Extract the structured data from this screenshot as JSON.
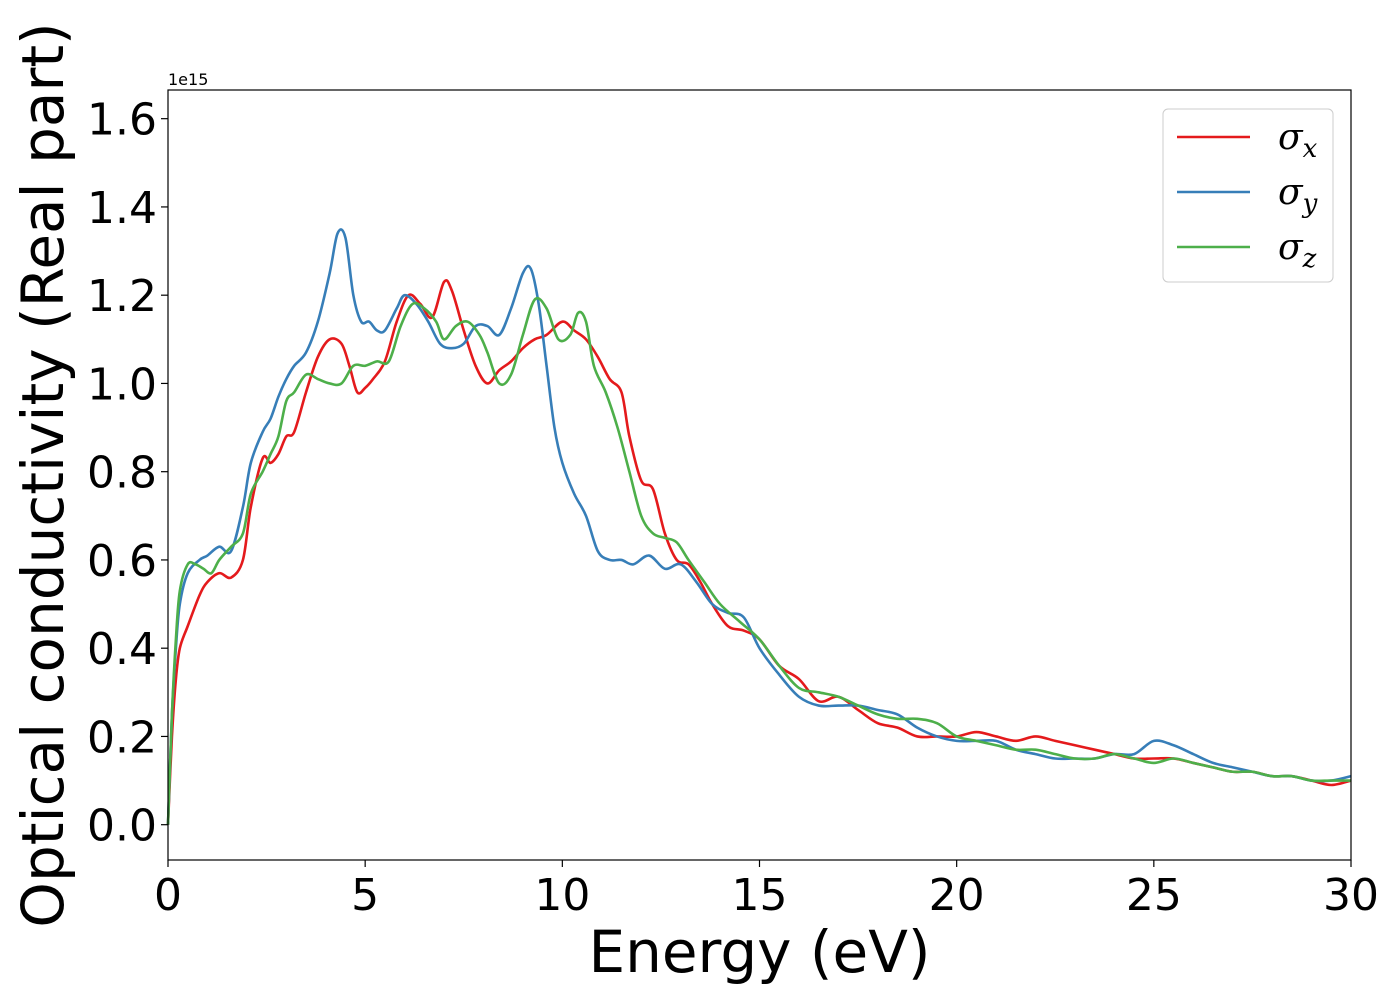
{
  "chart_data": {
    "type": "line",
    "xlabel": "Energy (eV)",
    "ylabel": "Optical conductivity (Real part)",
    "y_offset_label": "1e15",
    "xlim": [
      0,
      30
    ],
    "ylim": [
      -0.08,
      1.665
    ],
    "xticks": [
      0,
      5,
      10,
      15,
      20,
      25,
      30
    ],
    "yticks": [
      0.0,
      0.2,
      0.4,
      0.6,
      0.8,
      1.0,
      1.2,
      1.4,
      1.6
    ],
    "xtick_labels": [
      "0",
      "5",
      "10",
      "15",
      "20",
      "25",
      "30"
    ],
    "ytick_labels": [
      "0.0",
      "0.2",
      "0.4",
      "0.6",
      "0.8",
      "1.0",
      "1.2",
      "1.4",
      "1.6"
    ],
    "grid": false,
    "legend_position": "top-right",
    "series": [
      {
        "name": "σx",
        "symbol": "σ",
        "subscript": "x",
        "color": "#e41a1c",
        "x": [
          0,
          0.1,
          0.2,
          0.3,
          0.5,
          0.8,
          1.0,
          1.3,
          1.6,
          1.9,
          2.1,
          2.4,
          2.6,
          2.8,
          3.0,
          3.2,
          3.5,
          3.8,
          4.1,
          4.4,
          4.6,
          4.8,
          5.0,
          5.2,
          5.5,
          5.8,
          6.1,
          6.4,
          6.7,
          7.0,
          7.2,
          7.5,
          7.8,
          8.1,
          8.4,
          8.7,
          9.0,
          9.3,
          9.6,
          10.0,
          10.3,
          10.6,
          10.9,
          11.2,
          11.5,
          11.7,
          12.0,
          12.3,
          12.6,
          12.9,
          13.2,
          13.5,
          13.8,
          14.2,
          14.6,
          15.0,
          15.5,
          16.0,
          16.5,
          17.0,
          17.5,
          18.0,
          18.5,
          19.0,
          19.5,
          20.0,
          20.5,
          21.0,
          21.5,
          22.0,
          22.5,
          23.0,
          23.5,
          24.0,
          24.5,
          25.0,
          25.5,
          26.0,
          26.5,
          27.0,
          27.5,
          28.0,
          28.5,
          29.0,
          29.5,
          30.0
        ],
        "values": [
          0.0,
          0.2,
          0.33,
          0.4,
          0.45,
          0.52,
          0.55,
          0.57,
          0.56,
          0.6,
          0.72,
          0.83,
          0.82,
          0.84,
          0.88,
          0.89,
          0.98,
          1.06,
          1.1,
          1.09,
          1.04,
          0.98,
          0.99,
          1.01,
          1.05,
          1.14,
          1.2,
          1.18,
          1.15,
          1.23,
          1.21,
          1.12,
          1.04,
          1.0,
          1.03,
          1.05,
          1.08,
          1.1,
          1.11,
          1.14,
          1.12,
          1.1,
          1.06,
          1.01,
          0.98,
          0.88,
          0.78,
          0.76,
          0.66,
          0.6,
          0.59,
          0.55,
          0.5,
          0.45,
          0.44,
          0.42,
          0.36,
          0.33,
          0.28,
          0.29,
          0.26,
          0.23,
          0.22,
          0.2,
          0.2,
          0.2,
          0.21,
          0.2,
          0.19,
          0.2,
          0.19,
          0.18,
          0.17,
          0.16,
          0.15,
          0.15,
          0.15,
          0.14,
          0.13,
          0.12,
          0.12,
          0.11,
          0.11,
          0.1,
          0.09,
          0.1
        ]
      },
      {
        "name": "σy",
        "symbol": "σ",
        "subscript": "y",
        "color": "#377eb8",
        "x": [
          0,
          0.1,
          0.2,
          0.3,
          0.5,
          0.8,
          1.0,
          1.3,
          1.6,
          1.9,
          2.1,
          2.4,
          2.6,
          2.8,
          3.0,
          3.2,
          3.5,
          3.8,
          4.1,
          4.3,
          4.5,
          4.7,
          4.9,
          5.1,
          5.3,
          5.5,
          5.8,
          6.0,
          6.3,
          6.6,
          6.9,
          7.2,
          7.5,
          7.8,
          8.1,
          8.4,
          8.7,
          9.0,
          9.2,
          9.4,
          9.6,
          9.8,
          10.0,
          10.3,
          10.6,
          10.9,
          11.2,
          11.5,
          11.8,
          12.2,
          12.6,
          13.0,
          13.4,
          13.8,
          14.2,
          14.6,
          15.0,
          15.5,
          16.0,
          16.5,
          17.0,
          17.5,
          18.0,
          18.5,
          19.0,
          19.5,
          20.0,
          20.5,
          21.0,
          21.5,
          22.0,
          22.5,
          23.0,
          23.5,
          24.0,
          24.5,
          25.0,
          25.5,
          26.0,
          26.5,
          27.0,
          27.5,
          28.0,
          28.5,
          29.0,
          29.5,
          30.0
        ],
        "values": [
          0.0,
          0.25,
          0.4,
          0.5,
          0.57,
          0.6,
          0.61,
          0.63,
          0.62,
          0.72,
          0.82,
          0.89,
          0.92,
          0.97,
          1.01,
          1.04,
          1.07,
          1.14,
          1.25,
          1.34,
          1.33,
          1.2,
          1.14,
          1.14,
          1.12,
          1.12,
          1.17,
          1.2,
          1.18,
          1.14,
          1.09,
          1.08,
          1.09,
          1.13,
          1.13,
          1.11,
          1.17,
          1.25,
          1.26,
          1.18,
          1.04,
          0.9,
          0.82,
          0.75,
          0.7,
          0.62,
          0.6,
          0.6,
          0.59,
          0.61,
          0.58,
          0.59,
          0.55,
          0.5,
          0.48,
          0.47,
          0.4,
          0.34,
          0.29,
          0.27,
          0.27,
          0.27,
          0.26,
          0.25,
          0.22,
          0.2,
          0.19,
          0.19,
          0.19,
          0.17,
          0.16,
          0.15,
          0.15,
          0.15,
          0.16,
          0.16,
          0.19,
          0.18,
          0.16,
          0.14,
          0.13,
          0.12,
          0.11,
          0.11,
          0.1,
          0.1,
          0.11
        ]
      },
      {
        "name": "σz",
        "symbol": "σ",
        "subscript": "z",
        "color": "#4daf4a",
        "x": [
          0,
          0.1,
          0.2,
          0.3,
          0.5,
          0.7,
          0.9,
          1.1,
          1.3,
          1.6,
          1.9,
          2.1,
          2.4,
          2.6,
          2.8,
          3.0,
          3.2,
          3.5,
          3.8,
          4.1,
          4.4,
          4.7,
          5.0,
          5.3,
          5.6,
          5.9,
          6.2,
          6.5,
          6.8,
          7.0,
          7.3,
          7.6,
          7.9,
          8.1,
          8.4,
          8.7,
          9.0,
          9.3,
          9.6,
          9.9,
          10.2,
          10.4,
          10.6,
          10.8,
          11.1,
          11.4,
          11.7,
          12.0,
          12.3,
          12.6,
          12.9,
          13.2,
          13.6,
          14.0,
          14.5,
          15.0,
          15.5,
          16.0,
          16.5,
          17.0,
          17.5,
          18.0,
          18.5,
          19.0,
          19.5,
          20.0,
          20.5,
          21.0,
          21.5,
          22.0,
          22.5,
          23.0,
          23.5,
          24.0,
          24.5,
          25.0,
          25.5,
          26.0,
          26.5,
          27.0,
          27.5,
          28.0,
          28.5,
          29.0,
          29.5,
          30.0
        ],
        "values": [
          0.0,
          0.25,
          0.42,
          0.53,
          0.59,
          0.59,
          0.58,
          0.57,
          0.6,
          0.63,
          0.66,
          0.75,
          0.8,
          0.84,
          0.88,
          0.96,
          0.98,
          1.02,
          1.01,
          1.0,
          1.0,
          1.04,
          1.04,
          1.05,
          1.05,
          1.13,
          1.18,
          1.17,
          1.14,
          1.1,
          1.13,
          1.14,
          1.11,
          1.07,
          1.0,
          1.02,
          1.11,
          1.19,
          1.17,
          1.1,
          1.11,
          1.16,
          1.14,
          1.04,
          0.98,
          0.9,
          0.8,
          0.7,
          0.66,
          0.65,
          0.64,
          0.6,
          0.55,
          0.5,
          0.46,
          0.42,
          0.36,
          0.31,
          0.3,
          0.29,
          0.27,
          0.25,
          0.24,
          0.24,
          0.23,
          0.2,
          0.19,
          0.18,
          0.17,
          0.17,
          0.16,
          0.15,
          0.15,
          0.16,
          0.15,
          0.14,
          0.15,
          0.14,
          0.13,
          0.12,
          0.12,
          0.11,
          0.11,
          0.1,
          0.1,
          0.1
        ]
      }
    ]
  }
}
